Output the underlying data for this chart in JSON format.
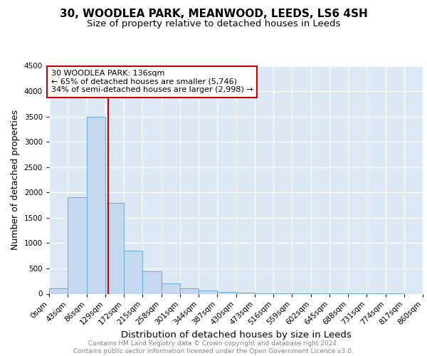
{
  "title1": "30, WOODLEA PARK, MEANWOOD, LEEDS, LS6 4SH",
  "title2": "Size of property relative to detached houses in Leeds",
  "xlabel": "Distribution of detached houses by size in Leeds",
  "ylabel": "Number of detached properties",
  "footnote": "Contains HM Land Registry data © Crown copyright and database right 2024.\nContains public sector information licensed under the Open Government Licence v3.0.",
  "bin_edges": [
    0,
    43,
    86,
    129,
    172,
    215,
    258,
    301,
    344,
    387,
    430,
    473,
    516,
    559,
    602,
    645,
    688,
    731,
    774,
    817,
    860
  ],
  "bar_heights": [
    100,
    1900,
    3500,
    1800,
    850,
    450,
    200,
    110,
    60,
    35,
    20,
    12,
    8,
    5,
    4,
    3,
    2,
    1,
    1,
    0
  ],
  "bar_color": "#c5d8f0",
  "bar_edge_color": "#6aaad4",
  "vline_color": "#cc0000",
  "vline_x": 136,
  "annotation_text": "30 WOODLEA PARK: 136sqm\n← 65% of detached houses are smaller (5,746)\n34% of semi-detached houses are larger (2,998) →",
  "annotation_box_color": "#ffffff",
  "annotation_box_edge": "#cc0000",
  "ylim": [
    0,
    4500
  ],
  "title1_fontsize": 11,
  "title2_fontsize": 9.5,
  "annotation_fontsize": 8,
  "xlabel_fontsize": 9.5,
  "ylabel_fontsize": 9,
  "footnote_fontsize": 6.5,
  "tick_label_fontsize": 7.5
}
